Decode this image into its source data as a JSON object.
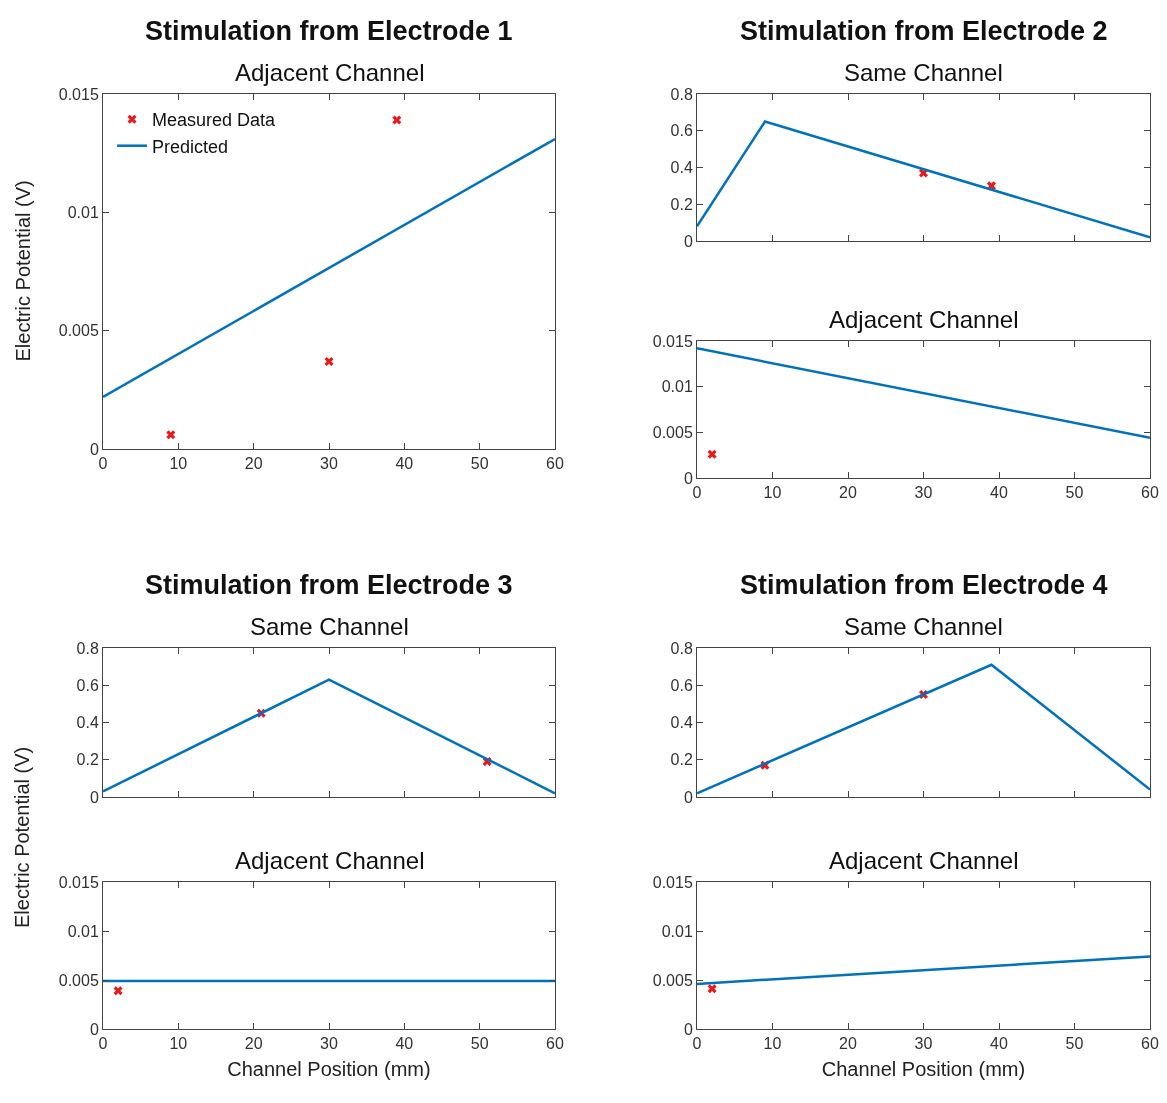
{
  "chart_data": [
    {
      "type": "line",
      "title": "Stimulation from Electrode 1",
      "subtitle": "Adjacent Channel",
      "ylabel": "Electric Potential (V)",
      "xlim": [
        0,
        60
      ],
      "xticks": [
        0,
        10,
        20,
        30,
        40,
        50,
        60
      ],
      "ylim": [
        0,
        0.015
      ],
      "yticks": [
        0,
        0.005,
        0.01,
        0.015
      ],
      "grid": false,
      "legend": "top left",
      "line_style": "solid",
      "series": [
        {
          "name": "Measured Data",
          "type": "scatter",
          "marker": "cross",
          "color": "#e8191b",
          "x": [
            9,
            30,
            39
          ],
          "values": [
            0.0006,
            0.0037,
            0.0139
          ]
        },
        {
          "name": "Predicted",
          "type": "line",
          "marker": "none",
          "color": "#0072bd",
          "x": [
            0,
            60
          ],
          "values": [
            0.0022,
            0.0131
          ]
        }
      ]
    },
    {
      "type": "line",
      "title": "Stimulation from Electrode 2",
      "subtitle": "Same Channel",
      "xlim": [
        0,
        60
      ],
      "xticks": [
        0,
        10,
        20,
        30,
        40,
        50,
        60
      ],
      "ylim": [
        0,
        0.8
      ],
      "yticks": [
        0,
        0.2,
        0.4,
        0.6,
        0.8
      ],
      "grid": false,
      "legend": false,
      "tick_labels": "y",
      "line_style": "solid",
      "series": [
        {
          "type": "scatter",
          "marker": "cross",
          "color": "#e8191b",
          "x": [
            30,
            39
          ],
          "values": [
            0.37,
            0.3
          ]
        },
        {
          "type": "line",
          "marker": "none",
          "color": "#0072bd",
          "x": [
            0,
            9,
            60
          ],
          "values": [
            0.08,
            0.65,
            0.02
          ]
        }
      ]
    },
    {
      "type": "line",
      "title": "Adjacent Channel",
      "xlim": [
        0,
        60
      ],
      "xticks": [
        0,
        10,
        20,
        30,
        40,
        50,
        60
      ],
      "ylim": [
        0,
        0.015
      ],
      "yticks": [
        0,
        0.005,
        0.01,
        0.015
      ],
      "grid": false,
      "legend": false,
      "line_style": "solid",
      "series": [
        {
          "type": "scatter",
          "marker": "cross",
          "color": "#e8191b",
          "x": [
            2
          ],
          "values": [
            0.0026
          ]
        },
        {
          "type": "line",
          "marker": "none",
          "color": "#0072bd",
          "x": [
            0,
            60
          ],
          "values": [
            0.0142,
            0.0044
          ]
        }
      ]
    },
    {
      "type": "line",
      "title": "Stimulation from Electrode 3",
      "subtitle": "Same Channel",
      "ylabel": "Electric Potential (V)",
      "xlim": [
        0,
        60
      ],
      "xticks": [
        0,
        10,
        20,
        30,
        40,
        50,
        60
      ],
      "ylim": [
        0,
        0.8
      ],
      "yticks": [
        0,
        0.2,
        0.4,
        0.6,
        0.8
      ],
      "grid": false,
      "legend": false,
      "tick_labels": "y",
      "line_style": "solid",
      "series": [
        {
          "type": "scatter",
          "marker": "cross",
          "color": "#e8191b",
          "x": [
            21,
            51
          ],
          "values": [
            0.45,
            0.19
          ]
        },
        {
          "type": "line",
          "marker": "none",
          "color": "#0072bd",
          "x": [
            0,
            30,
            60
          ],
          "values": [
            0.03,
            0.63,
            0.02
          ]
        }
      ]
    },
    {
      "type": "line",
      "title": "Adjacent Channel",
      "xlabel": "Channel Position (mm)",
      "xlim": [
        0,
        60
      ],
      "xticks": [
        0,
        10,
        20,
        30,
        40,
        50,
        60
      ],
      "ylim": [
        0,
        0.015
      ],
      "yticks": [
        0,
        0.005,
        0.01,
        0.015
      ],
      "grid": false,
      "legend": false,
      "line_style": "solid",
      "series": [
        {
          "type": "scatter",
          "marker": "cross",
          "color": "#e8191b",
          "x": [
            2
          ],
          "values": [
            0.0039
          ]
        },
        {
          "type": "line",
          "marker": "none",
          "color": "#0072bd",
          "x": [
            0,
            60
          ],
          "values": [
            0.0049,
            0.0049
          ]
        }
      ]
    },
    {
      "type": "line",
      "title": "Stimulation from Electrode 4",
      "subtitle": "Same Channel",
      "xlim": [
        0,
        60
      ],
      "xticks": [
        0,
        10,
        20,
        30,
        40,
        50,
        60
      ],
      "ylim": [
        0,
        0.8
      ],
      "yticks": [
        0,
        0.2,
        0.4,
        0.6,
        0.8
      ],
      "grid": false,
      "legend": false,
      "tick_labels": "y",
      "line_style": "solid",
      "series": [
        {
          "type": "scatter",
          "marker": "cross",
          "color": "#e8191b",
          "x": [
            9,
            30
          ],
          "values": [
            0.17,
            0.55
          ]
        },
        {
          "type": "line",
          "marker": "none",
          "color": "#0072bd",
          "x": [
            0,
            39,
            60
          ],
          "values": [
            0.02,
            0.71,
            0.04
          ]
        }
      ]
    },
    {
      "type": "line",
      "title": "Adjacent Channel",
      "xlabel": "Channel Position (mm)",
      "xlim": [
        0,
        60
      ],
      "xticks": [
        0,
        10,
        20,
        30,
        40,
        50,
        60
      ],
      "ylim": [
        0,
        0.015
      ],
      "yticks": [
        0,
        0.005,
        0.01,
        0.015
      ],
      "grid": false,
      "legend": false,
      "line_style": "solid",
      "series": [
        {
          "type": "scatter",
          "marker": "cross",
          "color": "#e8191b",
          "x": [
            2
          ],
          "values": [
            0.0041
          ]
        },
        {
          "type": "line",
          "marker": "none",
          "color": "#0072bd",
          "x": [
            0,
            60
          ],
          "values": [
            0.0046,
            0.0074
          ]
        }
      ]
    }
  ]
}
